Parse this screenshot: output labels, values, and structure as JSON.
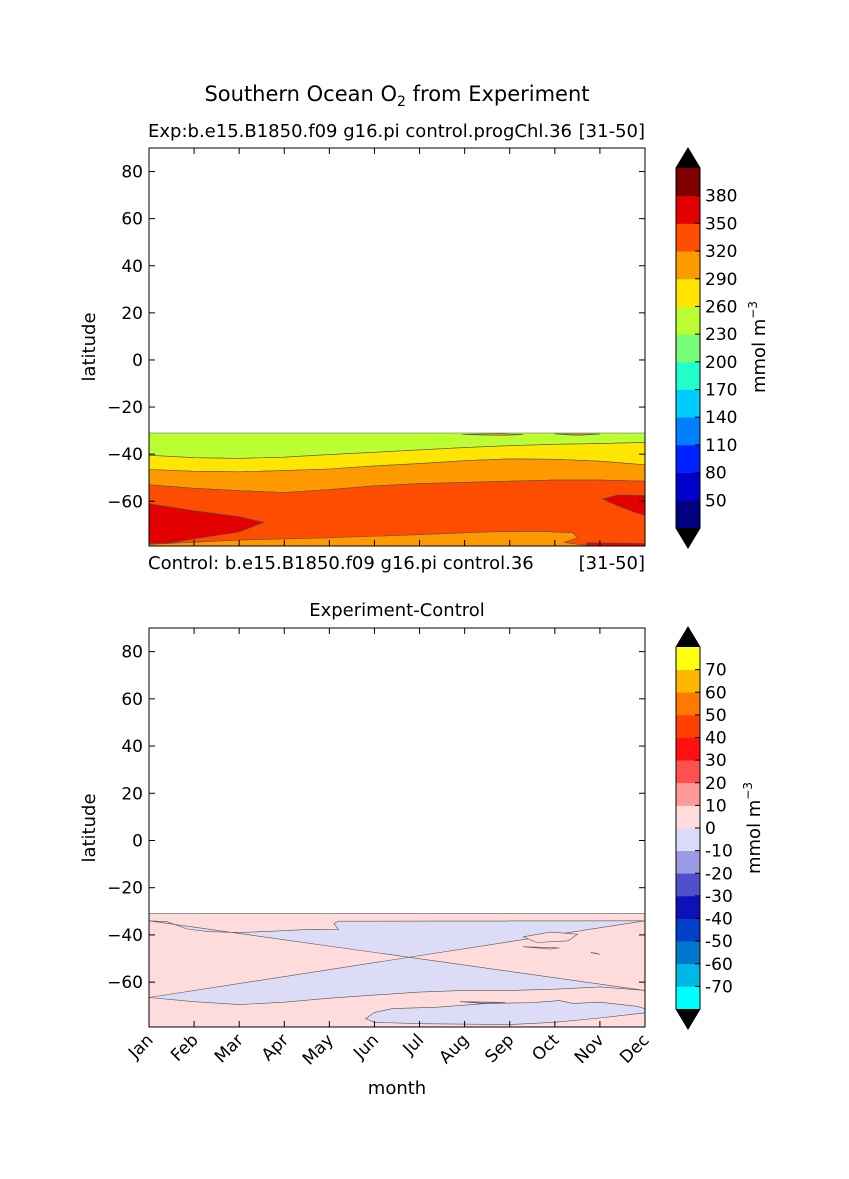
{
  "figure": {
    "title_main": "Southern Ocean O",
    "title_sub": "2",
    "title_tail": " from Experiment"
  },
  "chart_data": [
    {
      "type": "heatmap",
      "title": "",
      "subtitle_left": "Exp:b.e15.B1850.f09 g16.pi control.progChl.36",
      "subtitle_right": "[31-50]",
      "footer_left": "Control: b.e15.B1850.f09 g16.pi control.36",
      "footer_right": "[31-50]",
      "xlabel": "",
      "ylabel": "latitude",
      "xlim": [
        0,
        11
      ],
      "ylim": [
        -79,
        90
      ],
      "yticks": [
        80,
        60,
        40,
        20,
        0,
        -20,
        -40,
        -60
      ],
      "ytick_labels": [
        "80",
        "60",
        "40",
        "20",
        "0",
        "−20",
        "−40",
        "−60"
      ],
      "xticks_shown": false,
      "data_lat_max": -31,
      "contour_levels": [
        20,
        50,
        80,
        110,
        140,
        170,
        200,
        230,
        260,
        290,
        320,
        350,
        380,
        410
      ],
      "colorbar": {
        "label_main": "mmol m",
        "label_sup": "−3",
        "tick_labels": [
          "50",
          "80",
          "110",
          "140",
          "170",
          "200",
          "230",
          "260",
          "290",
          "320",
          "350",
          "380"
        ],
        "colors": [
          "#000080",
          "#0000cd",
          "#0022ff",
          "#0080ff",
          "#00ccff",
          "#22ffcc",
          "#77ff77",
          "#bbff33",
          "#ffe600",
          "#ff9900",
          "#ff4d00",
          "#e30000",
          "#800000"
        ],
        "extend": "both"
      },
      "bands": [
        {
          "level": 230,
          "color": "#bbff33",
          "top": [
            [
              0,
              -31
            ],
            [
              11,
              -31
            ]
          ],
          "bottom": [
            [
              0,
              -40.5
            ],
            [
              1,
              -41.5
            ],
            [
              2,
              -41.8
            ],
            [
              3,
              -41.3
            ],
            [
              4,
              -40.2
            ],
            [
              5,
              -39.2
            ],
            [
              6,
              -38.2
            ],
            [
              7,
              -37.2
            ],
            [
              8,
              -36.4
            ],
            [
              9,
              -35.8
            ],
            [
              10,
              -35.5
            ],
            [
              11,
              -35
            ]
          ]
        },
        {
          "level": 260,
          "color": "#ffe600",
          "top": [
            [
              0,
              -40.5
            ],
            [
              1,
              -41.5
            ],
            [
              2,
              -41.8
            ],
            [
              3,
              -41.3
            ],
            [
              4,
              -40.2
            ],
            [
              5,
              -39.2
            ],
            [
              6,
              -38.2
            ],
            [
              7,
              -37.2
            ],
            [
              8,
              -36.4
            ],
            [
              9,
              -35.8
            ],
            [
              10,
              -35.5
            ],
            [
              11,
              -35
            ]
          ],
          "bottom": [
            [
              0,
              -46.5
            ],
            [
              1,
              -47.3
            ],
            [
              2,
              -47.5
            ],
            [
              3,
              -47
            ],
            [
              4,
              -46.3
            ],
            [
              5,
              -45
            ],
            [
              6,
              -44
            ],
            [
              7,
              -42.8
            ],
            [
              8,
              -42
            ],
            [
              9,
              -42.2
            ],
            [
              10,
              -43
            ],
            [
              11,
              -44.5
            ]
          ]
        },
        {
          "level": 290,
          "color": "#ff9900",
          "top": [
            [
              0,
              -46.5
            ],
            [
              1,
              -47.3
            ],
            [
              2,
              -47.5
            ],
            [
              3,
              -47
            ],
            [
              4,
              -46.3
            ],
            [
              5,
              -45
            ],
            [
              6,
              -44
            ],
            [
              7,
              -42.8
            ],
            [
              8,
              -42
            ],
            [
              9,
              -42.2
            ],
            [
              10,
              -43
            ],
            [
              11,
              -44.5
            ]
          ],
          "bottom": [
            [
              0,
              -53
            ],
            [
              1,
              -54.5
            ],
            [
              2,
              -55.5
            ],
            [
              3,
              -56.3
            ],
            [
              4,
              -55
            ],
            [
              5,
              -53.5
            ],
            [
              6,
              -52.5
            ],
            [
              7,
              -52
            ],
            [
              8,
              -51.5
            ],
            [
              9,
              -51
            ],
            [
              10,
              -51
            ],
            [
              11,
              -51.5
            ]
          ]
        },
        {
          "level": 320,
          "color": "#ff4d00",
          "top": [
            [
              0,
              -53
            ],
            [
              1,
              -54.5
            ],
            [
              2,
              -55.5
            ],
            [
              3,
              -56.3
            ],
            [
              4,
              -55
            ],
            [
              5,
              -53.5
            ],
            [
              6,
              -52.5
            ],
            [
              7,
              -52
            ],
            [
              8,
              -51.5
            ],
            [
              9,
              -51
            ],
            [
              10,
              -51
            ],
            [
              11,
              -51.5
            ]
          ],
          "bottom": [
            [
              0,
              -79
            ],
            [
              11,
              -79
            ]
          ]
        }
      ],
      "patches": [
        {
          "level": 350,
          "color": "#e30000",
          "points": [
            [
              0,
              -61
            ],
            [
              1,
              -64
            ],
            [
              2,
              -66.5
            ],
            [
              2.55,
              -69
            ],
            [
              2,
              -73
            ],
            [
              1,
              -76
            ],
            [
              0.4,
              -78
            ],
            [
              0,
              -78
            ]
          ]
        },
        {
          "level": 350,
          "color": "#e30000",
          "points": [
            [
              11,
              -57.5
            ],
            [
              10.4,
              -57.3
            ],
            [
              10.05,
              -59
            ],
            [
              10.4,
              -62
            ],
            [
              10.75,
              -64.5
            ],
            [
              11,
              -66
            ]
          ]
        },
        {
          "level": 350,
          "color": "#e30000",
          "points": [
            [
              9.7,
              -77.6
            ],
            [
              10.8,
              -77.8
            ],
            [
              11,
              -78
            ],
            [
              11,
              -79
            ],
            [
              9.7,
              -79
            ]
          ]
        },
        {
          "level": 290,
          "color": "#ff9900",
          "points": [
            [
              0,
              -79
            ],
            [
              0,
              -78.3
            ],
            [
              2,
              -76.5
            ],
            [
              4,
              -75.5
            ],
            [
              6,
              -74.2
            ],
            [
              7.5,
              -73
            ],
            [
              8.7,
              -72.8
            ],
            [
              9.4,
              -73.4
            ],
            [
              9.5,
              -75.5
            ],
            [
              9.2,
              -77.5
            ],
            [
              9.6,
              -78.5
            ],
            [
              10,
              -79
            ]
          ]
        },
        {
          "level": 290,
          "color": "#ff9900",
          "points": [
            [
              6.95,
              -31.6
            ],
            [
              7.8,
              -32.1
            ],
            [
              8.3,
              -31.7
            ],
            [
              7.8,
              -31.3
            ]
          ]
        },
        {
          "level": 290,
          "color": "#ff9900",
          "points": [
            [
              9,
              -31.4
            ],
            [
              9.5,
              -32.1
            ],
            [
              10,
              -31.5
            ]
          ]
        }
      ]
    },
    {
      "type": "heatmap",
      "title": "Experiment-Control",
      "xlabel": "month",
      "ylabel": "latitude",
      "xlim": [
        0,
        11
      ],
      "ylim": [
        -79,
        90
      ],
      "categories": [
        "Jan",
        "Feb",
        "Mar",
        "Apr",
        "May",
        "Jun",
        "Jul",
        "Aug",
        "Sep",
        "Oct",
        "Nov",
        "Dec"
      ],
      "yticks": [
        80,
        60,
        40,
        20,
        0,
        -20,
        -40,
        -60
      ],
      "ytick_labels": [
        "80",
        "60",
        "40",
        "20",
        "0",
        "−20",
        "−40",
        "−60"
      ],
      "data_lat_max": -31,
      "contour_levels": [
        -80,
        -70,
        -60,
        -50,
        -40,
        -30,
        -20,
        -10,
        0,
        10,
        20,
        30,
        40,
        50,
        60,
        70,
        80
      ],
      "colorbar": {
        "label_main": "mmol m",
        "label_sup": "−3",
        "tick_labels": [
          "-70",
          "-60",
          "-50",
          "-40",
          "-30",
          "-20",
          "-10",
          "0",
          "10",
          "20",
          "30",
          "40",
          "50",
          "60",
          "70"
        ],
        "colors": [
          "#00ffff",
          "#00b8e6",
          "#0078d0",
          "#0040c8",
          "#1010b8",
          "#5050cc",
          "#9c9ce4",
          "#dcdcf6",
          "#ffdcdc",
          "#ff9a9a",
          "#ff5050",
          "#ff1010",
          "#ff4000",
          "#ff7800",
          "#ffb800",
          "#ffff10"
        ],
        "extend": "both"
      },
      "bands": [
        {
          "level": 0,
          "color": "#ffdcdc",
          "top": [
            [
              0,
              -31
            ],
            [
              11,
              -31
            ]
          ],
          "bottom": [
            [
              0,
              -79
            ],
            [
              11,
              -79
            ]
          ]
        },
        {
          "level": -10,
          "color": "#dcdcf6",
          "top": [
            [
              0,
              -34
            ],
            [
              0.4,
              -34.4
            ],
            [
              0.85,
              -37.5
            ],
            [
              1.3,
              -38.6
            ],
            [
              2,
              -39
            ],
            [
              2.8,
              -38.4
            ],
            [
              3.6,
              -37.6
            ],
            [
              4.2,
              -37.7
            ],
            [
              4.1,
              -35.2
            ],
            [
              4.2,
              -34.2
            ],
            [
              11,
              -34
            ]
          ],
          "bottom": [
            [
              11,
              -63.5
            ],
            [
              10,
              -62
            ],
            [
              9,
              -63
            ],
            [
              8,
              -63.5
            ],
            [
              7,
              -63.5
            ],
            [
              6,
              -64.2
            ],
            [
              5,
              -65.5
            ],
            [
              4,
              -66.8
            ],
            [
              3,
              -68.5
            ],
            [
              2,
              -69.5
            ],
            [
              1,
              -68.3
            ],
            [
              0,
              -66.5
            ]
          ]
        }
      ],
      "patches": [
        {
          "level": 0,
          "color": "#ffdcdc",
          "points": [
            [
              8.3,
              -40.8
            ],
            [
              8.9,
              -38.8
            ],
            [
              9.5,
              -39.7
            ],
            [
              9.3,
              -42.5
            ],
            [
              8.6,
              -43.2
            ]
          ]
        },
        {
          "level": 0,
          "color": "#ffdcdc",
          "points": [
            [
              8.3,
              -45
            ],
            [
              8.9,
              -46
            ],
            [
              9.1,
              -45.5
            ]
          ]
        },
        {
          "level": 0,
          "color": "#ffdcdc",
          "points": [
            [
              9.8,
              -47.5
            ],
            [
              10,
              -48.2
            ],
            [
              9.9,
              -47.7
            ]
          ]
        },
        {
          "level": -10,
          "color": "#dcdcf6",
          "points": [
            [
              4.8,
              -75.5
            ],
            [
              5,
              -72.8
            ],
            [
              5.4,
              -71.2
            ],
            [
              6.4,
              -70.6
            ],
            [
              7.5,
              -69
            ],
            [
              8.5,
              -68.7
            ],
            [
              9.1,
              -67.8
            ],
            [
              9.4,
              -69
            ],
            [
              10,
              -68.5
            ],
            [
              10.8,
              -70.2
            ],
            [
              11,
              -71.2
            ],
            [
              11,
              -73
            ],
            [
              10,
              -75.2
            ],
            [
              9,
              -77
            ],
            [
              8,
              -78
            ],
            [
              6,
              -77.6
            ],
            [
              5,
              -77
            ]
          ]
        },
        {
          "level": -20,
          "color": "#9c9ce4",
          "points": [
            [
              6.9,
              -68.3
            ],
            [
              7.4,
              -69
            ],
            [
              7.9,
              -68.6
            ]
          ]
        }
      ]
    }
  ]
}
